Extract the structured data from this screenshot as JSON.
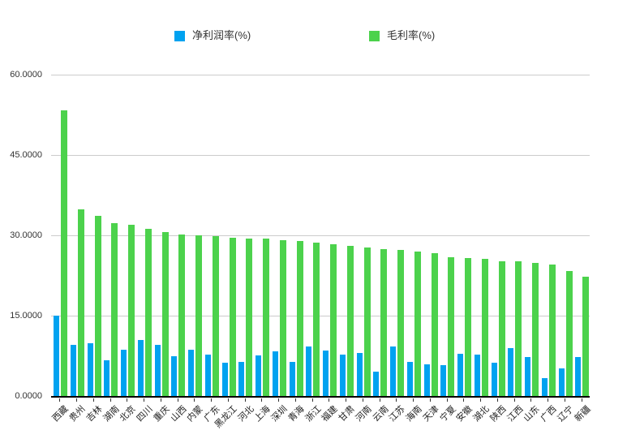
{
  "chart_data": {
    "type": "bar",
    "title": "",
    "legend_position": "top",
    "grid": true,
    "ylim": [
      0,
      60
    ],
    "y_ticks": [
      {
        "value": 60,
        "label": "60.0000"
      },
      {
        "value": 45,
        "label": "45.0000"
      },
      {
        "value": 30,
        "label": "30.0000"
      },
      {
        "value": 15,
        "label": "15.0000"
      },
      {
        "value": 0,
        "label": "0.0000"
      }
    ],
    "x_label_rotation_deg": -45,
    "categories": [
      "西藏",
      "贵州",
      "吉林",
      "湖南",
      "北京",
      "四川",
      "重庆",
      "山西",
      "内蒙",
      "广东",
      "黑龙江",
      "河北",
      "上海",
      "深圳",
      "青海",
      "浙江",
      "福建",
      "甘肃",
      "河南",
      "云南",
      "江苏",
      "海南",
      "天津",
      "宁夏",
      "安徽",
      "湖北",
      "陕西",
      "江西",
      "山东",
      "广西",
      "辽宁",
      "新疆"
    ],
    "series": [
      {
        "name": "净利润率(%)",
        "color": "#00A2F0",
        "values": [
          15.0,
          9.5,
          9.9,
          6.7,
          8.6,
          10.5,
          9.6,
          7.5,
          8.7,
          7.7,
          6.2,
          6.3,
          7.6,
          8.3,
          6.3,
          9.3,
          8.5,
          7.7,
          8.1,
          4.5,
          9.3,
          6.4,
          5.9,
          5.7,
          7.9,
          7.7,
          6.2,
          9.0,
          7.3,
          3.4,
          5.1,
          7.2
        ]
      },
      {
        "name": "毛利率(%)",
        "color": "#4CD24C",
        "values": [
          53.3,
          34.9,
          33.7,
          32.3,
          31.9,
          31.2,
          30.6,
          30.1,
          30.0,
          29.9,
          29.5,
          29.4,
          29.4,
          29.1,
          28.9,
          28.6,
          28.3,
          28.0,
          27.8,
          27.4,
          27.2,
          26.9,
          26.6,
          25.9,
          25.7,
          25.6,
          25.2,
          25.1,
          24.9,
          24.5,
          23.3,
          22.3
        ]
      }
    ],
    "axis_color": "#000000",
    "gridline_color": "#cccccc"
  }
}
